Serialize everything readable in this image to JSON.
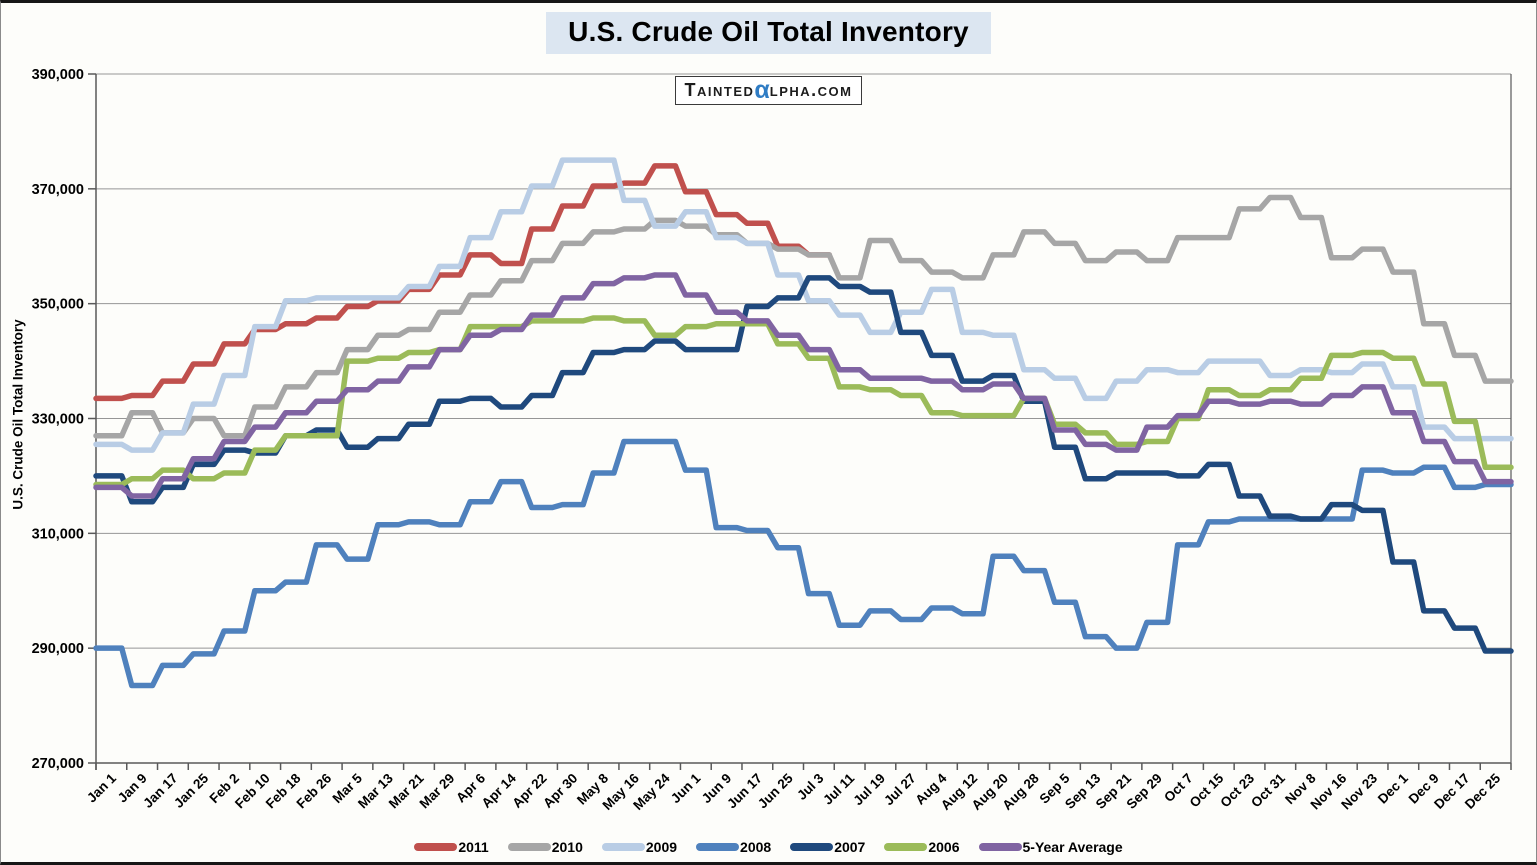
{
  "title": "U.S. Crude Oil Total Inventory",
  "logo": {
    "text_before": "Tainted",
    "alpha_glyph": "α",
    "text_after": "lpha.com",
    "alpha_color": "#2f7cc4"
  },
  "y_axis": {
    "title": "U.S. Crude Oil Total Inventory",
    "tick_labels": [
      "390,000",
      "370,000",
      "350,000",
      "330,000",
      "310,000",
      "290,000",
      "270,000"
    ],
    "min": 270000,
    "max": 390000,
    "step": 20000
  },
  "x_axis": {
    "labels": [
      "Jan 1",
      "Jan 9",
      "Jan 17",
      "Jan 25",
      "Feb 2",
      "Feb 10",
      "Feb 18",
      "Feb 26",
      "Mar 5",
      "Mar 13",
      "Mar 21",
      "Mar 29",
      "Apr 6",
      "Apr 14",
      "Apr 22",
      "Apr 30",
      "May 8",
      "May 16",
      "May 24",
      "Jun 1",
      "Jun 9",
      "Jun 17",
      "Jun 25",
      "Jul 3",
      "Jul 11",
      "Jul 19",
      "Jul 27",
      "Aug 4",
      "Aug 12",
      "Aug 20",
      "Aug 28",
      "Sep 5",
      "Sep 13",
      "Sep 21",
      "Sep 29",
      "Oct 7",
      "Oct 15",
      "Oct 23",
      "Oct 31",
      "Nov 8",
      "Nov 16",
      "Nov 23",
      "Dec 1",
      "Dec 9",
      "Dec 17",
      "Dec 25"
    ]
  },
  "colors": {
    "grid": "#969696",
    "axis": "#595959",
    "text": "#000000",
    "title_highlight": "#dce6f1"
  },
  "chart_data": {
    "type": "line",
    "step_style": true,
    "title": "U.S. Crude Oil Total Inventory",
    "xlabel": "",
    "ylabel": "U.S. Crude Oil Total Inventory",
    "ylim": [
      270000,
      390000
    ],
    "grid": true,
    "legend_position": "bottom",
    "categories": [
      "Jan 1",
      "Jan 9",
      "Jan 17",
      "Jan 25",
      "Feb 2",
      "Feb 10",
      "Feb 18",
      "Feb 26",
      "Mar 5",
      "Mar 13",
      "Mar 21",
      "Mar 29",
      "Apr 6",
      "Apr 14",
      "Apr 22",
      "Apr 30",
      "May 8",
      "May 16",
      "May 24",
      "Jun 1",
      "Jun 9",
      "Jun 17",
      "Jun 25",
      "Jul 3",
      "Jul 11",
      "Jul 19",
      "Jul 27",
      "Aug 4",
      "Aug 12",
      "Aug 20",
      "Aug 28",
      "Sep 5",
      "Sep 13",
      "Sep 21",
      "Sep 29",
      "Oct 7",
      "Oct 15",
      "Oct 23",
      "Oct 31",
      "Nov 8",
      "Nov 16",
      "Nov 23",
      "Dec 1",
      "Dec 9",
      "Dec 17",
      "Dec 25"
    ],
    "series": [
      {
        "name": "2011",
        "color": "#c0504d",
        "values": [
          333500,
          334000,
          336500,
          339500,
          343000,
          345500,
          346500,
          347500,
          349500,
          350500,
          352500,
          355000,
          358500,
          357000,
          363000,
          367000,
          370500,
          371000,
          374000,
          369500,
          365500,
          364000,
          360000,
          358500
        ]
      },
      {
        "name": "2010",
        "color": "#a6a6a6",
        "values": [
          327000,
          331000,
          327500,
          330000,
          327000,
          332000,
          335500,
          338000,
          342000,
          344500,
          345500,
          348500,
          351500,
          354000,
          357500,
          360500,
          362500,
          363000,
          364500,
          363500,
          362000,
          360500,
          359500,
          358500,
          354500,
          361000,
          357500,
          355500,
          354500,
          358500,
          362500,
          360500,
          357500,
          359000,
          357500,
          361500,
          361500,
          366500,
          368500,
          365000,
          358000,
          359500,
          355500,
          346500,
          341000,
          336500
        ]
      },
      {
        "name": "2009",
        "color": "#b9cde5",
        "values": [
          325500,
          324500,
          327500,
          332500,
          337500,
          346000,
          350500,
          351000,
          351000,
          351000,
          353000,
          356500,
          361500,
          366000,
          370500,
          375000,
          375000,
          368000,
          363500,
          366000,
          361500,
          360500,
          355000,
          350500,
          348000,
          345000,
          348500,
          352500,
          345000,
          344500,
          338500,
          337000,
          333500,
          336500,
          338500,
          338000,
          340000,
          340000,
          337500,
          338500,
          338000,
          339500,
          335500,
          328500,
          326500,
          326500
        ]
      },
      {
        "name": "2008",
        "color": "#4f81bd",
        "values": [
          290000,
          283500,
          287000,
          289000,
          293000,
          300000,
          301500,
          308000,
          305500,
          311500,
          312000,
          311500,
          315500,
          319000,
          314500,
          315000,
          320500,
          326000,
          326000,
          321000,
          311000,
          310500,
          307500,
          299500,
          294000,
          296500,
          295000,
          297000,
          296000,
          306000,
          303500,
          298000,
          292000,
          290000,
          294500,
          308000,
          312000,
          312500,
          312500,
          312500,
          312500,
          321000,
          320500,
          321500,
          318000,
          318500
        ]
      },
      {
        "name": "2007",
        "color": "#1f497d",
        "values": [
          320000,
          315500,
          318000,
          322000,
          324500,
          324000,
          327000,
          328000,
          325000,
          326500,
          329000,
          333000,
          333500,
          332000,
          334000,
          338000,
          341500,
          342000,
          343500,
          342000,
          342000,
          349500,
          351000,
          354500,
          353000,
          352000,
          345000,
          341000,
          336500,
          337500,
          333000,
          325000,
          319500,
          320500,
          320500,
          320000,
          322000,
          316500,
          313000,
          312500,
          315000,
          314000,
          305000,
          296500,
          293500,
          289500
        ]
      },
      {
        "name": "2006",
        "color": "#9bbb59",
        "values": [
          318500,
          319500,
          321000,
          319500,
          320500,
          324500,
          327000,
          327000,
          340000,
          340500,
          341500,
          342000,
          346000,
          346000,
          347000,
          347000,
          347500,
          347000,
          344500,
          346000,
          346500,
          346500,
          343000,
          340500,
          335500,
          335000,
          334000,
          331000,
          330500,
          330500,
          333500,
          329000,
          327500,
          325500,
          326000,
          330000,
          335000,
          334000,
          335000,
          337000,
          341000,
          341500,
          340500,
          336000,
          329500,
          321500
        ]
      },
      {
        "name": "5-Year Average",
        "color": "#8064a2",
        "values": [
          318000,
          316500,
          319500,
          323000,
          326000,
          328500,
          331000,
          333000,
          335000,
          336500,
          339000,
          342000,
          344500,
          345500,
          348000,
          351000,
          353500,
          354500,
          355000,
          351500,
          348500,
          347000,
          344500,
          342000,
          338500,
          337000,
          337000,
          336500,
          335000,
          336000,
          333500,
          328000,
          325500,
          324500,
          328500,
          330500,
          333000,
          332500,
          333000,
          332500,
          334000,
          335500,
          331000,
          326000,
          322500,
          319000
        ]
      }
    ]
  }
}
